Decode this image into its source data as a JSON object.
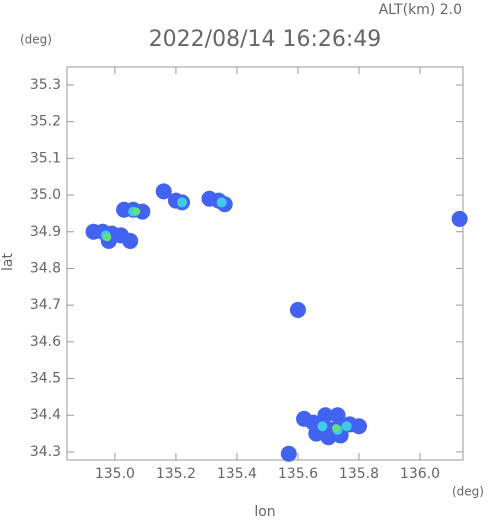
{
  "chart_data": {
    "type": "scatter",
    "title": "2022/08/14 16:26:49",
    "subtitle": "ALT(km) 2.0",
    "x_unit": "(deg)",
    "y_unit": "(deg)",
    "x_label": "lon",
    "y_label": "lat",
    "xlim": [
      134.843,
      136.141
    ],
    "ylim": [
      34.278,
      35.349
    ],
    "xticks": [
      {
        "value": 135,
        "label": "135.0"
      },
      135.2,
      135.4,
      135.6,
      135.8,
      {
        "value": 136,
        "label": "136.0"
      }
    ],
    "yticks": [
      34.3,
      34.4,
      34.5,
      34.6,
      34.7,
      34.8,
      34.9,
      {
        "value": 35,
        "label": "35.0"
      },
      35.1,
      35.2,
      35.3
    ],
    "series": [
      {
        "color": "#4262f0",
        "x": [
          134.93,
          134.96,
          134.99,
          135.02,
          135.05,
          134.98,
          135.03,
          135.06,
          135.09,
          135.2,
          135.22,
          135.16,
          135.31,
          135.34,
          135.36,
          135.62,
          135.65,
          135.68,
          135.71,
          135.74,
          135.77,
          135.8,
          135.66,
          135.7,
          135.74,
          135.69,
          135.73,
          135.57,
          136.13,
          135.6
        ],
        "values": [
          34.9,
          34.9,
          34.895,
          34.89,
          34.875,
          34.875,
          34.96,
          34.96,
          34.955,
          34.985,
          34.98,
          35.01,
          34.99,
          34.985,
          34.975,
          34.39,
          34.38,
          34.37,
          34.36,
          34.37,
          34.375,
          34.37,
          34.35,
          34.34,
          34.345,
          34.4,
          34.4,
          34.295,
          34.935,
          34.687
        ]
      },
      {
        "color": "#3fcbe6",
        "x": [
          134.97,
          135.06,
          135.22,
          135.35,
          135.68,
          135.73,
          135.76
        ],
        "values": [
          34.89,
          34.955,
          34.98,
          34.98,
          34.37,
          34.36,
          34.37
        ]
      },
      {
        "color": "#62e07e",
        "x": [
          134.975,
          135.07,
          135.725
        ],
        "values": [
          34.885,
          34.955,
          34.365
        ]
      }
    ]
  }
}
